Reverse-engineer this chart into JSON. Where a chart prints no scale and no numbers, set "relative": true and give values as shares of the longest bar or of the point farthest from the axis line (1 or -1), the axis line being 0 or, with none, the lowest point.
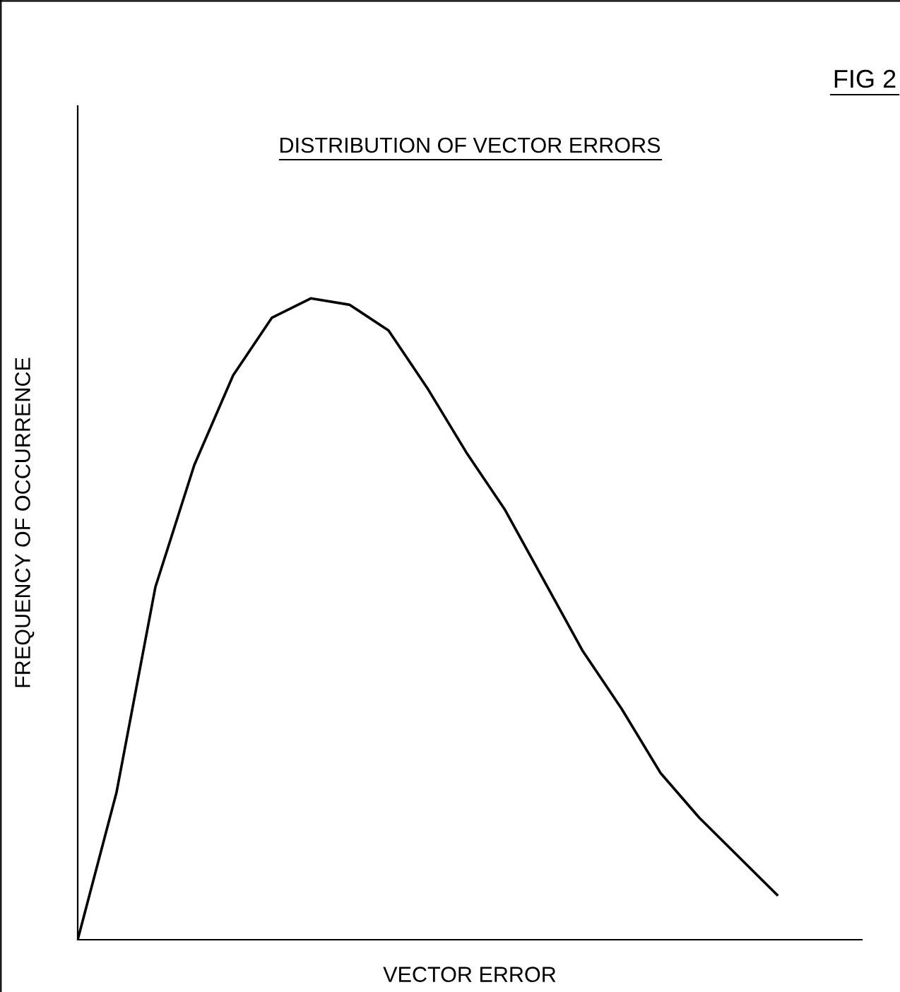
{
  "chart_data": {
    "type": "line",
    "title": "DISTRIBUTION OF VECTOR ERRORS",
    "xlabel": "VECTOR ERROR",
    "ylabel": "FREQUENCY OF OCCURRENCE",
    "annotations": [
      "FIG 2"
    ],
    "relative": true,
    "categories": [
      null,
      null,
      null,
      null,
      null,
      null,
      null,
      null,
      null,
      null,
      null,
      null,
      null,
      null,
      null,
      null,
      null,
      null,
      null
    ],
    "series": [
      {
        "color": "#000000",
        "values": [
          0,
          0.23,
          0.55,
          0.74,
          0.88,
          0.97,
          1.0,
          0.99,
          0.95,
          0.86,
          0.76,
          0.67,
          0.56,
          0.45,
          0.36,
          0.26,
          0.19,
          0.13,
          0.07
        ]
      }
    ],
    "grid": false,
    "legend": false,
    "marker": "none",
    "line_style": "solid"
  }
}
